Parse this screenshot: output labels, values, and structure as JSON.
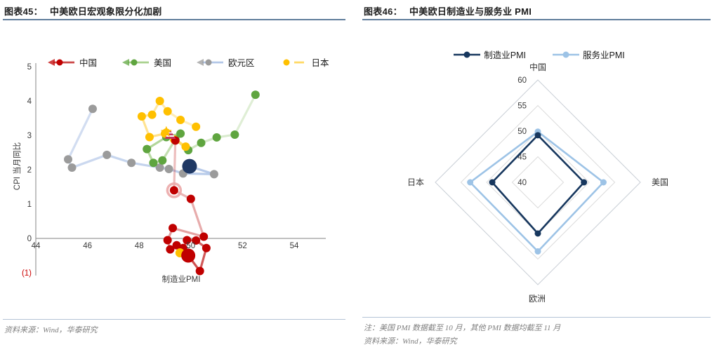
{
  "figures": {
    "fig45": {
      "label": "图表45：",
      "title": "中美欧日宏观象限分化加剧",
      "source": "资料来源：Wind，华泰研究"
    },
    "fig46": {
      "label": "图表46：",
      "title": "中美欧日制造业与服务业 PMI",
      "note": "注：美国 PMI 数据截至 10 月，其他 PMI 数据均截至 11 月",
      "source": "资料来源：Wind，华泰研究"
    }
  },
  "chart_data": [
    {
      "id": "macro-quadrant-scatter",
      "type": "scatter",
      "title": "中美欧日宏观象限分化加剧",
      "xlabel": "制造业PMI",
      "ylabel": "CPI 当月同比",
      "xlim": [
        43.8,
        55.3
      ],
      "ylim": [
        -1.4,
        5
      ],
      "x_ticks": [
        "44",
        "46",
        "48",
        "50",
        "52",
        "54"
      ],
      "y_ticks": [
        {
          "v": 5,
          "label": "5",
          "color": "#3a3a3a"
        },
        {
          "v": 4,
          "label": "4",
          "color": "#3a3a3a"
        },
        {
          "v": 3,
          "label": "3",
          "color": "#3a3a3a"
        },
        {
          "v": 2,
          "label": "2",
          "color": "#3a3a3a"
        },
        {
          "v": 1,
          "label": "1",
          "color": "#3a3a3a"
        },
        {
          "v": 0,
          "label": "0",
          "color": "#3a3a3a"
        },
        {
          "v": -1,
          "label": "(1)",
          "color": "#cc0000"
        }
      ],
      "series": [
        {
          "sid": "eurozone",
          "name": "欧元区",
          "dot_color": "#9b9b9b",
          "line_color": "#b3c7e8",
          "fade": [
            0.55,
            0.95
          ],
          "legend_arrow": true,
          "points": [
            [
              46.2,
              3.77
            ],
            [
              45.25,
              2.3
            ],
            [
              45.4,
              2.06
            ],
            [
              46.75,
              2.43
            ],
            [
              47.7,
              2.2
            ],
            [
              48.8,
              2.06
            ],
            [
              49.15,
              2.02
            ],
            [
              49.7,
              1.89
            ],
            [
              50.9,
              1.87
            ],
            [
              49.95,
              2.1
            ]
          ]
        },
        {
          "sid": "us",
          "name": "美国",
          "dot_color": "#5fa53f",
          "line_color": "#a9d18e",
          "fade": [
            0.3,
            0.95
          ],
          "legend_arrow": true,
          "points": [
            [
              52.5,
              4.18
            ],
            [
              51.7,
              3.02
            ],
            [
              51.0,
              2.94
            ],
            [
              50.4,
              2.78
            ],
            [
              49.9,
              2.57
            ],
            [
              49.4,
              2.88
            ],
            [
              48.9,
              2.27
            ],
            [
              48.55,
              2.2
            ],
            [
              48.3,
              2.6
            ],
            [
              49.05,
              2.95
            ],
            [
              49.6,
              3.05
            ]
          ]
        },
        {
          "sid": "japan",
          "name": "日本",
          "dot_color": "#ffc000",
          "line_color": "#ffd966",
          "fade": [
            0.35,
            0.95
          ],
          "legend_arrow": false,
          "points": [
            [
              50.2,
              3.25
            ],
            [
              49.6,
              3.45
            ],
            [
              49.1,
              3.7
            ],
            [
              48.8,
              4.0
            ],
            [
              48.5,
              3.6
            ],
            [
              48.1,
              3.55
            ],
            [
              48.4,
              2.95
            ],
            [
              49.0,
              3.05
            ],
            [
              49.35,
              2.88
            ],
            [
              49.8,
              2.67
            ],
            [
              49.05,
              3.08
            ]
          ]
        },
        {
          "sid": "china",
          "name": "中国",
          "dot_color": "#c00000",
          "line_color": "#cc4848",
          "fade": [
            0.3,
            0.95
          ],
          "legend_arrow": true,
          "points": [
            [
              49.4,
              2.85
            ],
            [
              49.35,
              1.4
            ],
            [
              50.0,
              1.15
            ],
            [
              50.5,
              0.05
            ],
            [
              49.3,
              0.3
            ],
            [
              49.1,
              -0.05
            ],
            [
              49.2,
              -0.32
            ],
            [
              49.45,
              -0.2
            ],
            [
              49.7,
              -0.28
            ],
            [
              49.85,
              -0.05
            ],
            [
              50.2,
              -0.06
            ],
            [
              50.6,
              -0.28
            ],
            [
              50.35,
              -0.95
            ],
            [
              49.9,
              -0.5
            ]
          ]
        }
      ],
      "legend_order": [
        "china",
        "us",
        "eurozone",
        "japan"
      ],
      "markers": [
        {
          "name": "japan-overlap-point",
          "shape": "circle",
          "color": "#ffc000",
          "x": 49.58,
          "y": -0.42,
          "r": 6.5
        },
        {
          "name": "china-halo-point",
          "shape": "halo",
          "color": "#c00000",
          "ring_color": "#eba9a9",
          "x": 49.35,
          "y": 1.4
        },
        {
          "name": "china-current-point",
          "shape": "circle",
          "color": "#c00000",
          "x": 49.9,
          "y": -0.5,
          "r": 10
        },
        {
          "name": "eurozone-current-point",
          "shape": "circle",
          "color": "#1f3864",
          "x": 49.95,
          "y": 2.1,
          "r": 10.5
        },
        {
          "name": "us-current-marker",
          "shape": "triangle-striped",
          "color": "#c2375b",
          "x": 49.2,
          "y": 3.02
        },
        {
          "name": "japan-current-marker",
          "shape": "star",
          "color": "#ffc000",
          "x": 49.05,
          "y": 3.1
        }
      ]
    },
    {
      "id": "pmi-radar",
      "type": "radar",
      "title": "中美欧日制造业与服务业 PMI",
      "axes": [
        "中国",
        "美国",
        "欧洲",
        "日本"
      ],
      "ticks": [
        "60",
        "55",
        "50",
        "45",
        "40"
      ],
      "rmin": 40,
      "rmax": 60,
      "ring_values": [
        45,
        50,
        55,
        60
      ],
      "series": [
        {
          "sid": "services",
          "name": "服务业PMI",
          "color": "#9dc3e6",
          "values": [
            49.9,
            52.8,
            53.5,
            53.2
          ]
        },
        {
          "sid": "manufacturing",
          "name": "制造业PMI",
          "color": "#17375e",
          "values": [
            49.2,
            49.0,
            50.0,
            48.9
          ]
        }
      ],
      "legend_order": [
        "manufacturing",
        "services"
      ]
    }
  ]
}
